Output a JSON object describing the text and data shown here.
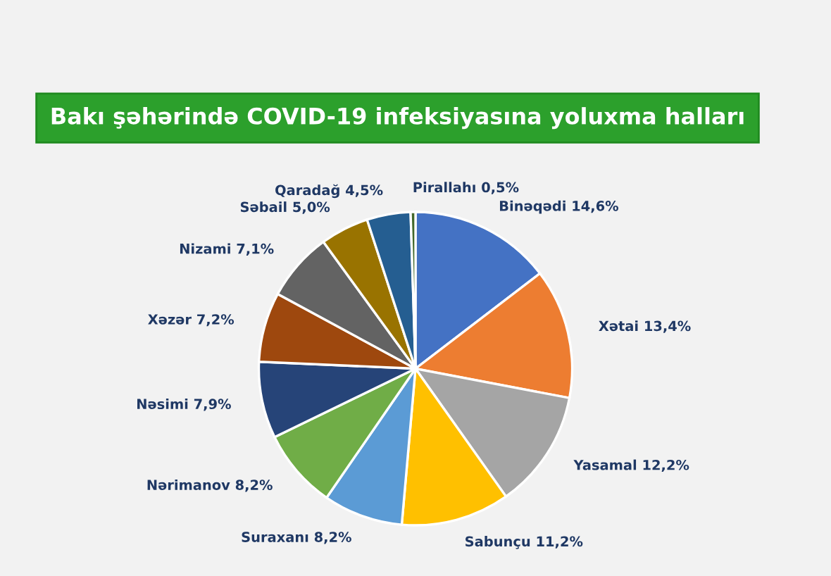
{
  "chart_data": {
    "type": "pie",
    "title": "Bakı şəhərində COVID-19 infeksiyasına yoluxma halları",
    "categories": [
      "Binəqədi",
      "Xətai",
      "Yasamal",
      "Sabunçu",
      "Suraxanı",
      "Nərimanov",
      "Nəsimi",
      "Xəzər",
      "Nizami",
      "Səbail",
      "Qaradağ",
      "Pirallahı"
    ],
    "values": [
      14.6,
      13.4,
      12.2,
      11.2,
      8.2,
      8.2,
      7.9,
      7.2,
      7.1,
      5.0,
      4.5,
      0.5
    ],
    "value_labels": [
      "14,6%",
      "13,4%",
      "12,2%",
      "11,2%",
      "8,2%",
      "8,2%",
      "7,9%",
      "7,2%",
      "7,1%",
      "5,0%",
      "4,5%",
      "0,5%"
    ],
    "colors": [
      "#4472c4",
      "#ed7d31",
      "#a5a5a5",
      "#ffc000",
      "#5b9bd5",
      "#70ad47",
      "#264478",
      "#9e480e",
      "#636363",
      "#997300",
      "#255e91",
      "#43682b"
    ]
  }
}
